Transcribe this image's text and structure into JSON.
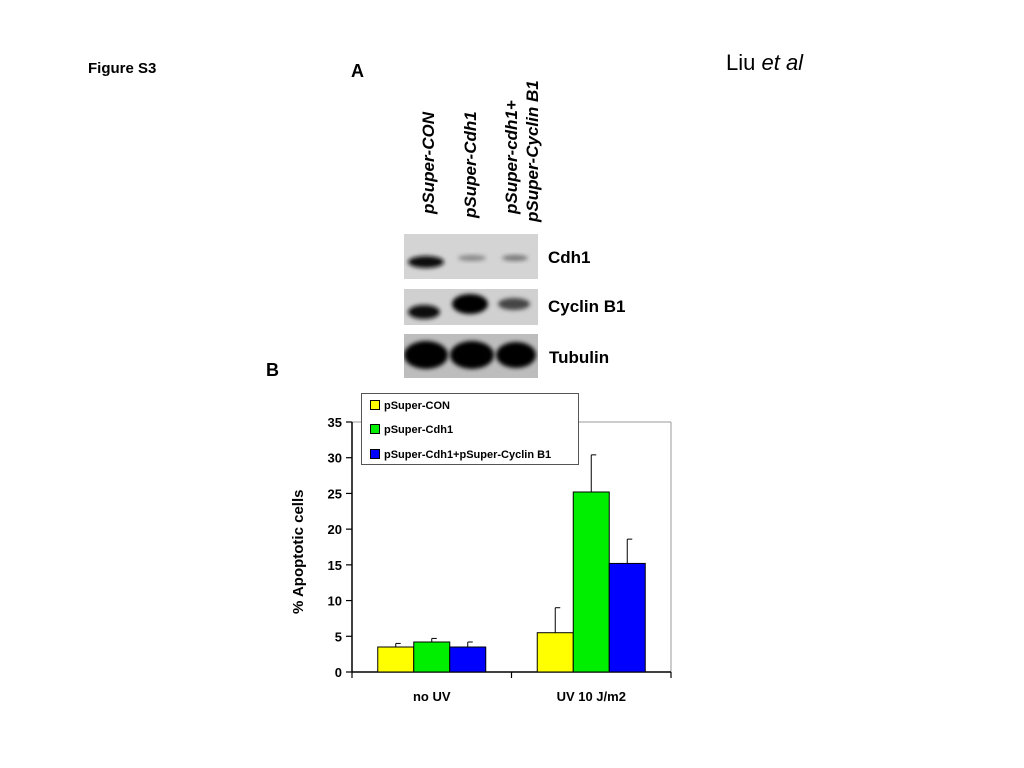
{
  "header": {
    "figure_label": "Figure S3",
    "author": "Liu",
    "author_suffix": "et al",
    "panel_a": "A",
    "panel_b": "B"
  },
  "blot": {
    "lanes": [
      "pSuper-CON",
      "pSuper-Cdh1",
      "pSuper-cdh1+",
      "pSuper-Cyclin B1"
    ],
    "rows": [
      "Cdh1",
      "Cyclin B1",
      "Tubulin"
    ],
    "band_intensity": [
      [
        0.9,
        0.3,
        0.4
      ],
      [
        0.8,
        1.0,
        0.6
      ],
      [
        1.0,
        1.0,
        1.0
      ]
    ]
  },
  "chart_data": {
    "type": "bar",
    "categories": [
      "no UV",
      "UV 10 J/m2"
    ],
    "ylabel": "% Apoptotic cells",
    "ylim": [
      0,
      35
    ],
    "yticks": [
      0,
      5,
      10,
      15,
      20,
      25,
      30,
      35
    ],
    "legend_position": "top-left",
    "series": [
      {
        "name": "pSuper-CON",
        "color": "#ffff00",
        "values": [
          3.5,
          5.5
        ],
        "errors": [
          0.5,
          3.5
        ]
      },
      {
        "name": "pSuper-Cdh1",
        "color": "#00ee00",
        "values": [
          4.2,
          25.2
        ],
        "errors": [
          0.5,
          5.2
        ]
      },
      {
        "name": "pSuper-Cdh1+pSuper-Cyclin B1",
        "color": "#0000ff",
        "values": [
          3.5,
          15.2
        ],
        "errors": [
          0.7,
          3.4
        ]
      }
    ]
  }
}
